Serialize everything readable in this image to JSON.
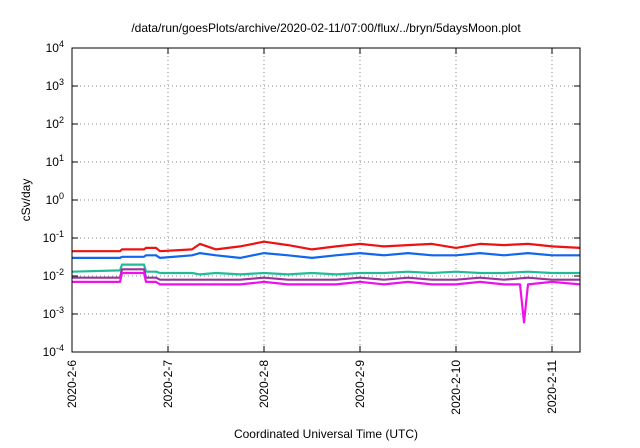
{
  "chart_data": {
    "type": "line",
    "title": "/data/run/goesPlots/archive/2020-02-11/07:00/flux/../bryn/5daysMoon.plot",
    "xlabel": "Coordinated Universal Time (UTC)",
    "ylabel": "cSv/day",
    "yscale": "log",
    "ylim": [
      0.0001,
      10000
    ],
    "y_ticks": [
      {
        "value": 0.0001,
        "base": "10",
        "exp": "-4"
      },
      {
        "value": 0.001,
        "base": "10",
        "exp": "-3"
      },
      {
        "value": 0.01,
        "base": "10",
        "exp": "-2"
      },
      {
        "value": 0.1,
        "base": "10",
        "exp": "-1"
      },
      {
        "value": 1,
        "base": "10",
        "exp": "0"
      },
      {
        "value": 10,
        "base": "10",
        "exp": "1"
      },
      {
        "value": 100,
        "base": "10",
        "exp": "2"
      },
      {
        "value": 1000,
        "base": "10",
        "exp": "3"
      },
      {
        "value": 10000,
        "base": "10",
        "exp": "4"
      }
    ],
    "xlim": [
      "2020-02-06 00:00",
      "2020-02-11 07:00"
    ],
    "x_ticks": [
      "2020-2-6",
      "2020-2-7",
      "2020-2-8",
      "2020-2-9",
      "2020-2-10",
      "2020-2-11"
    ],
    "grid": true,
    "legend": "none",
    "series": [
      {
        "color": "#ee1111",
        "x": [
          "2020-02-06 00:00",
          "2020-02-06 12:00",
          "2020-02-06 12:30",
          "2020-02-06 18:00",
          "2020-02-06 18:30",
          "2020-02-06 21:00",
          "2020-02-06 22:00",
          "2020-02-07 06:00",
          "2020-02-07 08:00",
          "2020-02-07 12:00",
          "2020-02-07 18:00",
          "2020-02-08 00:00",
          "2020-02-08 06:00",
          "2020-02-08 12:00",
          "2020-02-08 18:00",
          "2020-02-09 00:00",
          "2020-02-09 06:00",
          "2020-02-09 12:00",
          "2020-02-09 18:00",
          "2020-02-10 00:00",
          "2020-02-10 06:00",
          "2020-02-10 12:00",
          "2020-02-10 18:00",
          "2020-02-11 00:00",
          "2020-02-11 07:00"
        ],
        "y": [
          0.045,
          0.045,
          0.05,
          0.05,
          0.055,
          0.055,
          0.045,
          0.05,
          0.07,
          0.05,
          0.06,
          0.08,
          0.065,
          0.05,
          0.06,
          0.07,
          0.06,
          0.065,
          0.07,
          0.055,
          0.07,
          0.065,
          0.07,
          0.06,
          0.055
        ]
      },
      {
        "color": "#1166ee",
        "x": [
          "2020-02-06 00:00",
          "2020-02-06 12:00",
          "2020-02-06 12:30",
          "2020-02-06 18:00",
          "2020-02-06 18:30",
          "2020-02-06 21:00",
          "2020-02-06 22:00",
          "2020-02-07 06:00",
          "2020-02-07 08:00",
          "2020-02-07 12:00",
          "2020-02-07 18:00",
          "2020-02-08 00:00",
          "2020-02-08 06:00",
          "2020-02-08 12:00",
          "2020-02-08 18:00",
          "2020-02-09 00:00",
          "2020-02-09 06:00",
          "2020-02-09 12:00",
          "2020-02-09 18:00",
          "2020-02-10 00:00",
          "2020-02-10 06:00",
          "2020-02-10 12:00",
          "2020-02-10 18:00",
          "2020-02-11 00:00",
          "2020-02-11 07:00"
        ],
        "y": [
          0.03,
          0.03,
          0.032,
          0.032,
          0.035,
          0.035,
          0.03,
          0.035,
          0.04,
          0.035,
          0.03,
          0.04,
          0.035,
          0.03,
          0.035,
          0.04,
          0.035,
          0.04,
          0.035,
          0.035,
          0.04,
          0.035,
          0.04,
          0.035,
          0.035
        ]
      },
      {
        "color": "#22bb99",
        "x": [
          "2020-02-06 00:00",
          "2020-02-06 12:00",
          "2020-02-06 12:30",
          "2020-02-06 18:00",
          "2020-02-06 18:30",
          "2020-02-06 21:00",
          "2020-02-06 22:00",
          "2020-02-07 06:00",
          "2020-02-07 08:00",
          "2020-02-07 12:00",
          "2020-02-07 18:00",
          "2020-02-08 00:00",
          "2020-02-08 06:00",
          "2020-02-08 12:00",
          "2020-02-08 18:00",
          "2020-02-09 00:00",
          "2020-02-09 06:00",
          "2020-02-09 12:00",
          "2020-02-09 18:00",
          "2020-02-10 00:00",
          "2020-02-10 06:00",
          "2020-02-10 12:00",
          "2020-02-10 18:00",
          "2020-02-11 00:00",
          "2020-02-11 07:00"
        ],
        "y": [
          0.013,
          0.014,
          0.02,
          0.02,
          0.013,
          0.013,
          0.012,
          0.012,
          0.011,
          0.012,
          0.011,
          0.012,
          0.011,
          0.012,
          0.011,
          0.012,
          0.012,
          0.013,
          0.012,
          0.013,
          0.012,
          0.012,
          0.013,
          0.012,
          0.012
        ]
      },
      {
        "color": "#993399",
        "x": [
          "2020-02-06 00:00",
          "2020-02-06 12:00",
          "2020-02-06 12:30",
          "2020-02-06 18:00",
          "2020-02-06 18:30",
          "2020-02-06 21:00",
          "2020-02-06 22:00",
          "2020-02-07 06:00",
          "2020-02-07 08:00",
          "2020-02-07 12:00",
          "2020-02-07 18:00",
          "2020-02-08 00:00",
          "2020-02-08 06:00",
          "2020-02-08 12:00",
          "2020-02-08 18:00",
          "2020-02-09 00:00",
          "2020-02-09 06:00",
          "2020-02-09 12:00",
          "2020-02-09 18:00",
          "2020-02-10 00:00",
          "2020-02-10 06:00",
          "2020-02-10 12:00",
          "2020-02-10 18:00",
          "2020-02-11 00:00",
          "2020-02-11 07:00"
        ],
        "y": [
          0.009,
          0.009,
          0.015,
          0.015,
          0.009,
          0.009,
          0.008,
          0.008,
          0.008,
          0.008,
          0.008,
          0.009,
          0.008,
          0.008,
          0.008,
          0.009,
          0.008,
          0.009,
          0.008,
          0.008,
          0.009,
          0.008,
          0.009,
          0.008,
          0.008
        ]
      },
      {
        "color": "#ee11ee",
        "x": [
          "2020-02-06 00:00",
          "2020-02-06 12:00",
          "2020-02-06 12:30",
          "2020-02-06 18:00",
          "2020-02-06 18:30",
          "2020-02-06 21:00",
          "2020-02-06 22:00",
          "2020-02-07 06:00",
          "2020-02-07 08:00",
          "2020-02-07 12:00",
          "2020-02-07 18:00",
          "2020-02-08 00:00",
          "2020-02-08 06:00",
          "2020-02-08 12:00",
          "2020-02-08 18:00",
          "2020-02-09 00:00",
          "2020-02-09 06:00",
          "2020-02-09 12:00",
          "2020-02-09 18:00",
          "2020-02-10 00:00",
          "2020-02-10 06:00",
          "2020-02-10 12:00",
          "2020-02-10 16:00",
          "2020-02-10 17:00",
          "2020-02-10 18:00",
          "2020-02-11 00:00",
          "2020-02-11 07:00"
        ],
        "y": [
          0.007,
          0.007,
          0.012,
          0.012,
          0.007,
          0.007,
          0.006,
          0.006,
          0.006,
          0.006,
          0.006,
          0.007,
          0.006,
          0.006,
          0.006,
          0.007,
          0.006,
          0.007,
          0.006,
          0.006,
          0.007,
          0.006,
          0.006,
          0.0006,
          0.006,
          0.007,
          0.006
        ]
      }
    ]
  }
}
